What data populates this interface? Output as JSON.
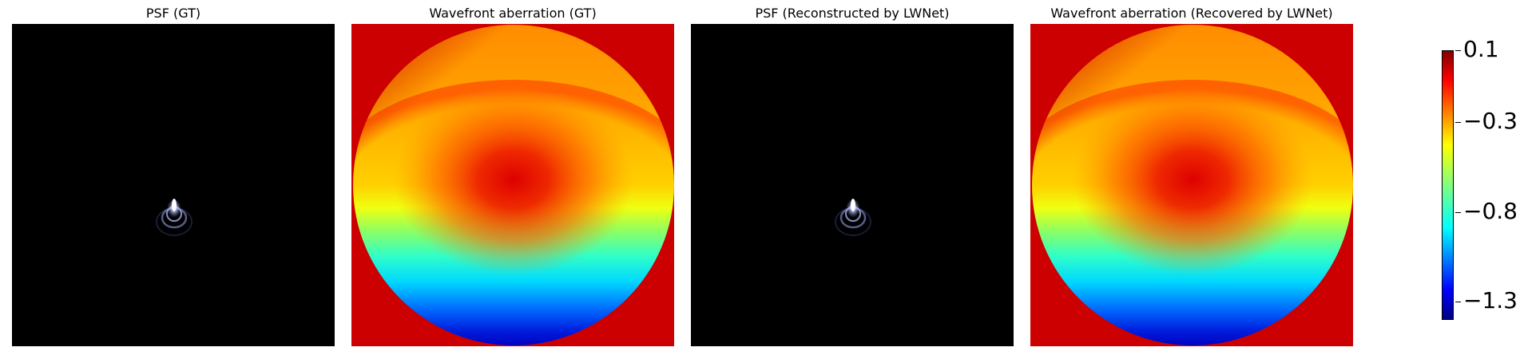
{
  "chart_data": {
    "type": "heatmap",
    "panels": [
      {
        "title": "PSF (GT)",
        "kind": "psf"
      },
      {
        "title": "Wavefront aberration (GT)",
        "kind": "wavefront"
      },
      {
        "title": "PSF (Reconstructed by LWNet)",
        "kind": "psf"
      },
      {
        "title": "Wavefront aberration (Recovered by LWNet)",
        "kind": "wavefront"
      }
    ],
    "colorbar": {
      "colormap": "jet",
      "range": [
        -1.4,
        0.1
      ],
      "tick_values": [
        0.1,
        -0.3,
        -0.8,
        -1.3
      ],
      "tick_labels": [
        "0.1",
        "−0.3",
        "−0.8",
        "−1.3"
      ]
    },
    "colors": {
      "psf_background": "#000000",
      "wavefront_background": "#cc0000"
    },
    "grid": false,
    "axes_visible": false
  }
}
